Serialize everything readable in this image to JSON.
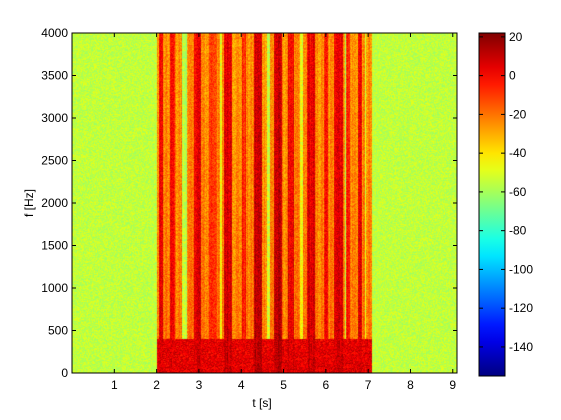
{
  "chart_data": {
    "type": "heatmap",
    "title": "",
    "xlabel": "t [s]",
    "ylabel": "f [Hz]",
    "xlim": [
      0,
      9.1
    ],
    "ylim": [
      0,
      4000
    ],
    "xticks": [
      1,
      2,
      3,
      4,
      5,
      6,
      7,
      8,
      9
    ],
    "yticks": [
      0,
      500,
      1000,
      1500,
      2000,
      2500,
      3000,
      3500,
      4000
    ],
    "colorbar": {
      "range": [
        -155,
        22
      ],
      "ticks": [
        20,
        0,
        -20,
        -40,
        -60,
        -80,
        -100,
        -120,
        -140
      ],
      "colormap": "jet"
    },
    "grid": false,
    "signal_segment": {
      "t_start": 2.0,
      "t_end": 7.1,
      "level_db": -20
    },
    "noise_floor_db": -55,
    "energy_bands": [
      {
        "t_start": 2.05,
        "t_end": 2.15,
        "level_db": 5
      },
      {
        "t_start": 2.32,
        "t_end": 2.43,
        "level_db": 2
      },
      {
        "t_start": 2.88,
        "t_end": 3.06,
        "level_db": 8
      },
      {
        "t_start": 3.25,
        "t_end": 3.42,
        "level_db": -5
      },
      {
        "t_start": 3.6,
        "t_end": 3.78,
        "level_db": 10
      },
      {
        "t_start": 4.02,
        "t_end": 4.12,
        "level_db": -2
      },
      {
        "t_start": 4.3,
        "t_end": 4.5,
        "level_db": 12
      },
      {
        "t_start": 4.78,
        "t_end": 4.96,
        "level_db": 12
      },
      {
        "t_start": 5.1,
        "t_end": 5.25,
        "level_db": 6
      },
      {
        "t_start": 5.55,
        "t_end": 5.75,
        "level_db": 8
      },
      {
        "t_start": 5.95,
        "t_end": 6.05,
        "level_db": 0
      },
      {
        "t_start": 6.2,
        "t_end": 6.4,
        "level_db": 10
      },
      {
        "t_start": 6.48,
        "t_end": 6.58,
        "level_db": -2
      },
      {
        "t_start": 6.75,
        "t_end": 6.85,
        "level_db": 6
      }
    ],
    "quiet_gaps": [
      {
        "t_start": 2.6,
        "t_end": 2.72,
        "level_db": -52
      },
      {
        "t_start": 3.5,
        "t_end": 3.55,
        "level_db": -45
      },
      {
        "t_start": 4.6,
        "t_end": 4.68,
        "level_db": -50
      },
      {
        "t_start": 5.4,
        "t_end": 5.45,
        "level_db": -45
      },
      {
        "t_start": 6.45,
        "t_end": 6.47,
        "level_db": -50
      },
      {
        "t_start": 6.92,
        "t_end": 6.95,
        "level_db": -50
      }
    ],
    "low_frequency_band": {
      "f_max": 400,
      "level_db": 5
    }
  }
}
